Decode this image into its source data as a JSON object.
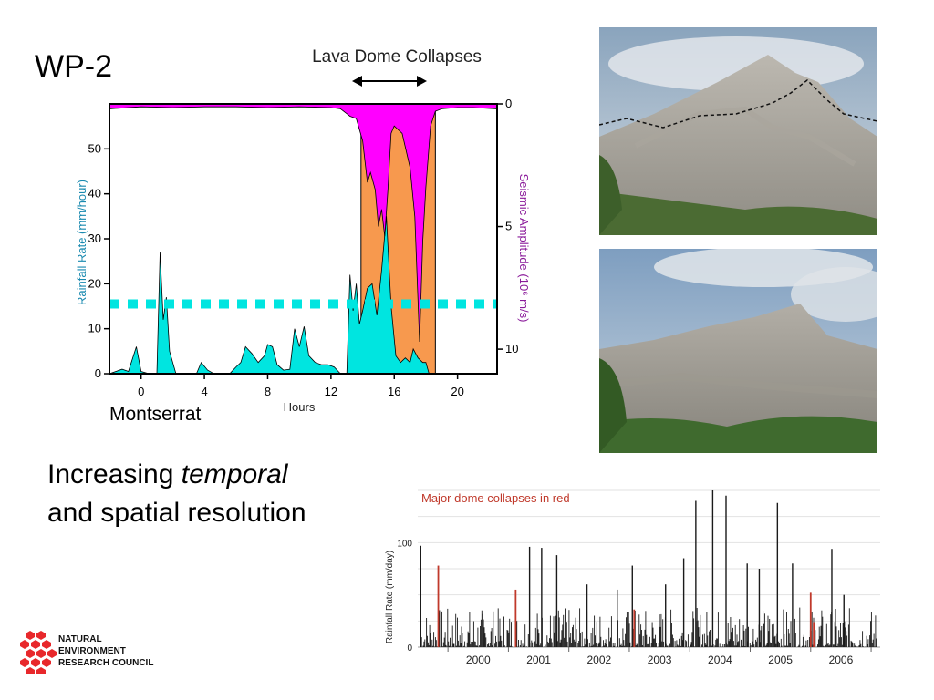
{
  "slide": {
    "title": "WP-2",
    "subtitle_line1_a": "Increasing ",
    "subtitle_line1_b": "temporal",
    "subtitle_line2": "and spatial resolution",
    "location_label": "Montserrat"
  },
  "logo": {
    "line1": "NATURAL",
    "line2": "ENVIRONMENT",
    "line3": "RESEARCH COUNCIL",
    "color": "#e8282b"
  },
  "photos": {
    "top": {
      "sky": "#b9c6d2",
      "mountain": "#9b9890",
      "vegetation": "#4b6b33"
    },
    "bottom": {
      "sky": "#9fb6cf",
      "mountain": "#8f8c84",
      "vegetation": "#3f6a2e"
    }
  },
  "chart_data": [
    {
      "type": "area",
      "title": "Lava Dome Collapses",
      "xlabel": "Hours",
      "ylabel": "Rainfall Rate (mm/hour)",
      "y2label": "Seismic Amplitude (10⁶ m/s)",
      "xlim": [
        -2,
        22.5
      ],
      "ylim": [
        0,
        60
      ],
      "y2lim": [
        0,
        11
      ],
      "x_ticks": [
        "0",
        "4",
        "8",
        "12",
        "16",
        "20"
      ],
      "x_tick_values": [
        0,
        4,
        8,
        12,
        16,
        20
      ],
      "y_ticks": [
        "0",
        "10",
        "20",
        "30",
        "40",
        "50"
      ],
      "y_tick_values": [
        0,
        10,
        20,
        30,
        40,
        50
      ],
      "y2_ticks": [
        "0",
        "5",
        "10"
      ],
      "y2_tick_values": [
        0,
        5,
        10
      ],
      "collapse_window": [
        13.9,
        18.6
      ],
      "reference_line": 15.5,
      "colors": {
        "rainfall": "#00e5e0",
        "seismic": "#ff00ff",
        "collapse": "#f7994e",
        "reference": "#00e5e0"
      },
      "series": [
        {
          "name": "Rainfall Rate",
          "x": [
            -2,
            -1.2,
            -0.8,
            -0.3,
            0,
            0.5,
            1,
            1.2,
            1.4,
            1.6,
            1.8,
            2.2,
            2.6,
            3.5,
            3.8,
            4.2,
            4.6,
            5,
            5.6,
            6,
            6.3,
            6.6,
            7,
            7.4,
            7.8,
            8,
            8.3,
            8.6,
            9,
            9.4,
            9.7,
            10,
            10.3,
            10.6,
            11,
            11.4,
            11.8,
            12.2,
            12.6,
            13,
            13.2,
            13.4,
            13.6,
            13.8,
            14.0,
            14.3,
            14.6,
            14.9,
            15.2,
            15.5,
            15.8,
            16.1,
            16.4,
            16.7,
            17.0,
            17.2,
            17.5,
            17.8,
            18.0,
            18.2,
            18.4,
            18.6,
            19,
            20,
            22.5
          ],
          "values": [
            0,
            1,
            0.5,
            6,
            0.5,
            0,
            0,
            27,
            12,
            17,
            5,
            0,
            0,
            0,
            2.5,
            0.8,
            0,
            0,
            0,
            1.5,
            2.5,
            6,
            4.5,
            2.5,
            4,
            6.5,
            6,
            2,
            0.8,
            1,
            10,
            6,
            10.5,
            4,
            2.5,
            2,
            2,
            1.5,
            0,
            0,
            22,
            14,
            20,
            11,
            14,
            19,
            20,
            13,
            23,
            35,
            15,
            4,
            2.5,
            3.5,
            2.5,
            5.5,
            3.5,
            2.5,
            2.5,
            0,
            0,
            0,
            0,
            0,
            0
          ]
        },
        {
          "name": "Seismic Amplitude",
          "x": [
            -2,
            0,
            2,
            4,
            6,
            8,
            10,
            12,
            12.6,
            13.2,
            13.6,
            14.0,
            14.3,
            14.5,
            14.8,
            15.0,
            15.2,
            15.4,
            15.6,
            15.8,
            16.0,
            16.5,
            17.0,
            17.3,
            17.6,
            17.8,
            18.0,
            18.3,
            18.6,
            19,
            20,
            21,
            22.5
          ],
          "values": [
            0.2,
            0.12,
            0.15,
            0.12,
            0.12,
            0.15,
            0.12,
            0.15,
            0.2,
            0.5,
            0.6,
            1.5,
            3.2,
            2.8,
            3.5,
            5.0,
            4.3,
            5.4,
            3.5,
            1.2,
            0.9,
            1.2,
            2.6,
            4.6,
            9.7,
            5.6,
            3.4,
            0.9,
            0.3,
            0.2,
            0.15,
            0.15,
            0.2
          ]
        }
      ]
    },
    {
      "type": "bar",
      "annotation": "Major dome collapses in red",
      "ylabel": "Rainfall Rate (mm/day)",
      "y_ticks": [
        "0",
        "100"
      ],
      "y_tick_values": [
        0,
        100
      ],
      "ylim": [
        0,
        150
      ],
      "xlim": [
        1999.5,
        2007.15
      ],
      "year_labels": [
        "2000",
        "2001",
        "2002",
        "2003",
        "2004",
        "2005",
        "2006"
      ],
      "year_label_positions": [
        2000.5,
        2001.5,
        2002.5,
        2003.5,
        2004.5,
        2005.5,
        2006.5
      ],
      "colors": {
        "normal": "#1a1a1a",
        "collapse": "#c0392b",
        "annotation": "#c0392b"
      },
      "collapse_events": [
        {
          "x": 1999.84,
          "value": 78
        },
        {
          "x": 2001.12,
          "value": 55
        },
        {
          "x": 2003.08,
          "value": 36
        },
        {
          "x": 2006.0,
          "value": 52
        },
        {
          "x": 2006.05,
          "value": 24
        }
      ],
      "peaks": [
        {
          "x": 1999.55,
          "value": 97
        },
        {
          "x": 2001.35,
          "value": 96
        },
        {
          "x": 2001.55,
          "value": 95
        },
        {
          "x": 2001.8,
          "value": 88
        },
        {
          "x": 2002.3,
          "value": 60
        },
        {
          "x": 2002.8,
          "value": 55
        },
        {
          "x": 2003.05,
          "value": 78
        },
        {
          "x": 2003.6,
          "value": 60
        },
        {
          "x": 2003.9,
          "value": 85
        },
        {
          "x": 2004.1,
          "value": 140
        },
        {
          "x": 2004.38,
          "value": 150
        },
        {
          "x": 2004.6,
          "value": 145
        },
        {
          "x": 2004.95,
          "value": 80
        },
        {
          "x": 2005.15,
          "value": 75
        },
        {
          "x": 2005.45,
          "value": 138
        },
        {
          "x": 2005.7,
          "value": 80
        },
        {
          "x": 2006.35,
          "value": 94
        },
        {
          "x": 2006.55,
          "value": 50
        }
      ],
      "baseline_max": 38,
      "baseline_count": 560
    }
  ]
}
